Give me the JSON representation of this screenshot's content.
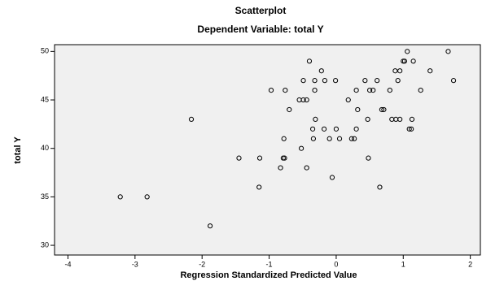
{
  "chart_data": {
    "type": "scatter",
    "title": "Scatterplot",
    "subtitle": "Dependent Variable: total Y",
    "x_label": "Regression Standardized Predicted Value",
    "y_label": "total Y",
    "x": [
      -3.22,
      -2.82,
      -2.16,
      -1.88,
      -1.45,
      -1.15,
      -1.14,
      -0.97,
      -0.83,
      -0.79,
      -0.77,
      -0.78,
      -0.76,
      -0.7,
      -0.55,
      -0.52,
      -0.49,
      -0.49,
      -0.44,
      -0.44,
      -0.4,
      -0.35,
      -0.32,
      -0.32,
      -0.31,
      -0.34,
      -0.22,
      -0.18,
      -0.17,
      -0.1,
      -0.06,
      -0.01,
      0.0,
      0.05,
      0.18,
      0.23,
      0.27,
      0.3,
      0.3,
      0.32,
      0.43,
      0.47,
      0.48,
      0.5,
      0.55,
      0.61,
      0.65,
      0.68,
      0.71,
      0.8,
      0.83,
      0.88,
      0.89,
      0.92,
      0.95,
      0.95,
      1.0,
      1.02,
      1.06,
      1.09,
      1.12,
      1.13,
      1.15,
      1.26,
      1.4,
      1.67,
      1.75
    ],
    "values": [
      35,
      35,
      43,
      32,
      39,
      36,
      39,
      46,
      38,
      39,
      39,
      41,
      46,
      44,
      45,
      40,
      47,
      45,
      45,
      38,
      49,
      42,
      46,
      47,
      43,
      41,
      48,
      42,
      47,
      41,
      37,
      47,
      42,
      41,
      45,
      41,
      41,
      42,
      46,
      44,
      47,
      43,
      39,
      46,
      46,
      47,
      36,
      44,
      44,
      46,
      43,
      48,
      43,
      47,
      43,
      48,
      49,
      49,
      50,
      42,
      42,
      43,
      49,
      46,
      48,
      50,
      47
    ],
    "color": "#000000",
    "xlim": [
      -4.2,
      2.15
    ],
    "ylim": [
      29,
      50.7
    ],
    "xticks": [
      -4,
      -3,
      -2,
      -1,
      0,
      1,
      2
    ],
    "yticks": [
      30,
      35,
      40,
      45,
      50
    ]
  }
}
